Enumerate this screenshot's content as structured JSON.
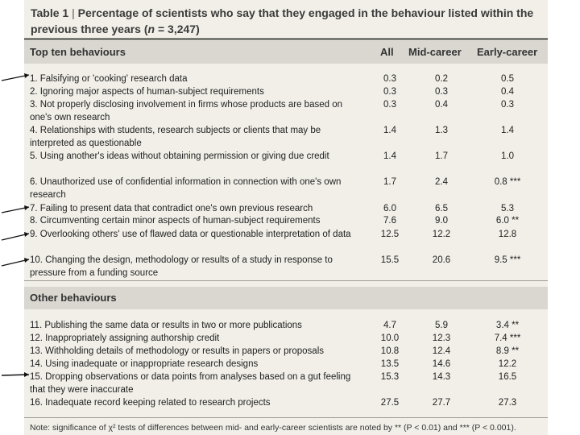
{
  "table": {
    "title_prefix": "Table 1",
    "title_sep": "|",
    "title_text": " Percentage of scientists who say that they engaged in the behaviour listed within the previous three years (",
    "title_n": "n",
    "title_suffix": " = 3,247)"
  },
  "columns": {
    "all": "All",
    "mid": "Mid-career",
    "early": "Early-career"
  },
  "sections": {
    "top_heading": "Top ten behaviours",
    "other_heading": "Other behaviours"
  },
  "top_rows": [
    {
      "label": "1. Falsifying or 'cooking' research data",
      "all": "0.3",
      "mid": "0.2",
      "early": "0.5"
    },
    {
      "label": "2. Ignoring major aspects of human-subject requirements",
      "all": "0.3",
      "mid": "0.3",
      "early": "0.4"
    },
    {
      "label": "3. Not properly disclosing involvement in firms whose products are based on one's own research",
      "all": "0.3",
      "mid": "0.4",
      "early": "0.3"
    },
    {
      "label": "4. Relationships with students, research subjects or clients that may be interpreted as questionable",
      "all": "1.4",
      "mid": "1.3",
      "early": "1.4"
    },
    {
      "label": "5. Using another's ideas without obtaining permission or giving due credit",
      "all": "1.4",
      "mid": "1.7",
      "early": "1.0"
    },
    {
      "label": "6. Unauthorized use of confidential information in connection with one's own research",
      "all": "1.7",
      "mid": "2.4",
      "early": "0.8 ***"
    },
    {
      "label": "7. Failing to present data that contradict one's own previous research",
      "all": "6.0",
      "mid": "6.5",
      "early": "5.3"
    },
    {
      "label": "8. Circumventing certain minor aspects of human-subject requirements",
      "all": "7.6",
      "mid": "9.0",
      "early": "6.0 **"
    },
    {
      "label": "9. Overlooking others' use of flawed data or questionable interpretation of data",
      "all": "12.5",
      "mid": "12.2",
      "early": "12.8"
    },
    {
      "label": "10. Changing the design, methodology or results of a study in response to pressure from a funding source",
      "all": "15.5",
      "mid": "20.6",
      "early": "9.5 ***"
    }
  ],
  "other_rows": [
    {
      "label": "11. Publishing the same data or results in two or more publications",
      "all": "4.7",
      "mid": "5.9",
      "early": "3.4 **"
    },
    {
      "label": "12. Inappropriately assigning authorship credit",
      "all": "10.0",
      "mid": "12.3",
      "early": "7.4 ***"
    },
    {
      "label": "13. Withholding details of methodology or results in papers or proposals",
      "all": "10.8",
      "mid": "12.4",
      "early": "8.9 **"
    },
    {
      "label": "14. Using inadequate or inappropriate research designs",
      "all": "13.5",
      "mid": "14.6",
      "early": "12.2"
    },
    {
      "label": "15. Dropping observations or data points from analyses based on a gut feeling that they were inaccurate",
      "all": "15.3",
      "mid": "14.3",
      "early": "16.5"
    },
    {
      "label": "16. Inadequate record keeping related to research projects",
      "all": "27.5",
      "mid": "27.7",
      "early": "27.3"
    }
  ],
  "note": "Note: significance of χ² tests of differences between mid- and early-career scientists are noted by ** (P < 0.01) and *** (P < 0.001).",
  "colors": {
    "paper": "#f1efe8",
    "band": "#d9d7d0",
    "rule": "#7a7a75",
    "arrow": "#111111"
  }
}
